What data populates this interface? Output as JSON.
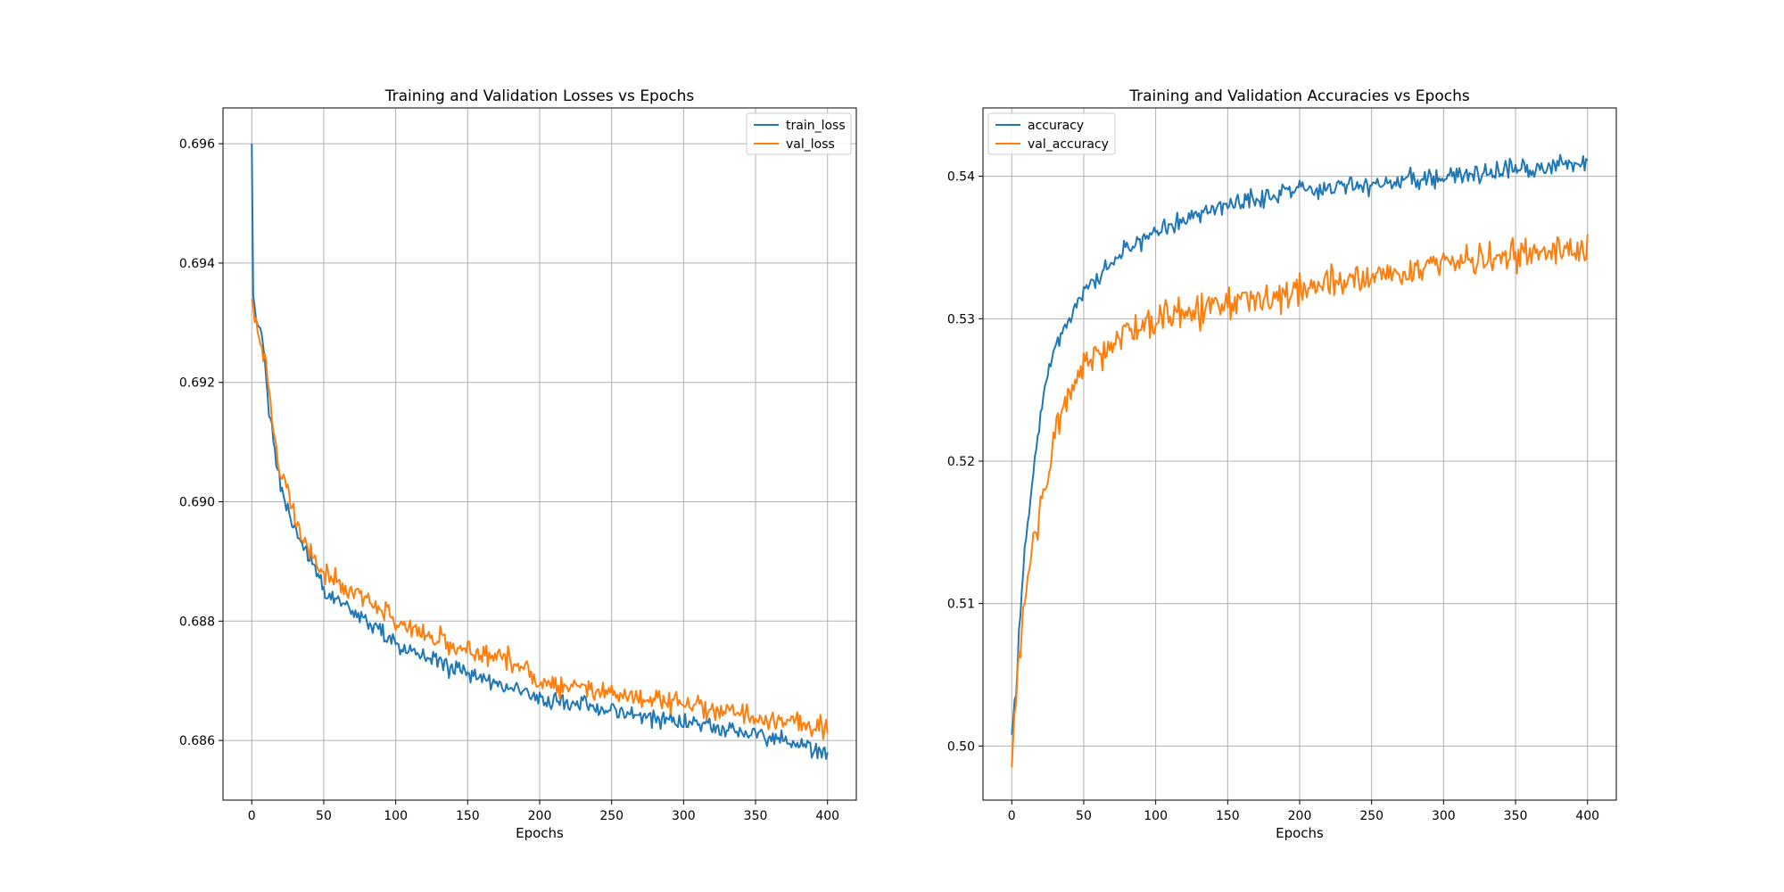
{
  "colors": {
    "train": "#1f77b4",
    "val": "#ff7f0e",
    "grid": "#b0b0b0",
    "axis": "#000000"
  },
  "chart_data": [
    {
      "type": "line",
      "title": "Training and Validation Losses vs Epochs",
      "xlabel": "Epochs",
      "ylabel": "",
      "xlim": [
        -20,
        420
      ],
      "ylim": [
        0.685,
        0.6966
      ],
      "xticks": [
        0,
        50,
        100,
        150,
        200,
        250,
        300,
        350,
        400
      ],
      "yticks": [
        0.686,
        0.688,
        0.69,
        0.692,
        0.694,
        0.696
      ],
      "ytick_decimals": 3,
      "grid": true,
      "legend_position": "top-right",
      "n_points": 401,
      "noise_seed": 11,
      "series": [
        {
          "name": "train_loss",
          "color": "#1f77b4",
          "noise": 0.00022,
          "control_points": [
            [
              0,
              0.696
            ],
            [
              1,
              0.6934
            ],
            [
              2,
              0.6931
            ],
            [
              5,
              0.6929
            ],
            [
              8,
              0.6927
            ],
            [
              12,
              0.6915
            ],
            [
              15,
              0.691
            ],
            [
              20,
              0.6903
            ],
            [
              25,
              0.6899
            ],
            [
              30,
              0.6895
            ],
            [
              40,
              0.6891
            ],
            [
              50,
              0.6885
            ],
            [
              60,
              0.6883
            ],
            [
              70,
              0.6882
            ],
            [
              80,
              0.688
            ],
            [
              100,
              0.6876
            ],
            [
              120,
              0.6874
            ],
            [
              150,
              0.6871
            ],
            [
              175,
              0.6869
            ],
            [
              200,
              0.6867
            ],
            [
              250,
              0.6865
            ],
            [
              300,
              0.6863
            ],
            [
              350,
              0.6861
            ],
            [
              375,
              0.686
            ],
            [
              400,
              0.6858
            ]
          ]
        },
        {
          "name": "val_loss",
          "color": "#ff7f0e",
          "noise": 0.00028,
          "control_points": [
            [
              0,
              0.6934
            ],
            [
              2,
              0.693
            ],
            [
              5,
              0.6928
            ],
            [
              8,
              0.6925
            ],
            [
              12,
              0.6918
            ],
            [
              15,
              0.6912
            ],
            [
              20,
              0.6905
            ],
            [
              25,
              0.6902
            ],
            [
              30,
              0.6897
            ],
            [
              40,
              0.6892
            ],
            [
              50,
              0.6888
            ],
            [
              60,
              0.6886
            ],
            [
              70,
              0.6885
            ],
            [
              80,
              0.6883
            ],
            [
              100,
              0.688
            ],
            [
              120,
              0.6878
            ],
            [
              150,
              0.6875
            ],
            [
              175,
              0.6874
            ],
            [
              200,
              0.687
            ],
            [
              250,
              0.6868
            ],
            [
              300,
              0.6866
            ],
            [
              350,
              0.6864
            ],
            [
              400,
              0.6862
            ]
          ]
        }
      ]
    },
    {
      "type": "line",
      "title": "Training and Validation Accuracies vs Epochs",
      "xlabel": "Epochs",
      "ylabel": "",
      "xlim": [
        -20,
        420
      ],
      "ylim": [
        0.4962,
        0.5448
      ],
      "xticks": [
        0,
        50,
        100,
        150,
        200,
        250,
        300,
        350,
        400
      ],
      "yticks": [
        0.5,
        0.51,
        0.52,
        0.53,
        0.54
      ],
      "ytick_decimals": 2,
      "grid": true,
      "legend_position": "top-left",
      "n_points": 401,
      "noise_seed": 29,
      "series": [
        {
          "name": "accuracy",
          "color": "#1f77b4",
          "noise": 0.001,
          "control_points": [
            [
              0,
              0.5008
            ],
            [
              3,
              0.504
            ],
            [
              5,
              0.508
            ],
            [
              8,
              0.512
            ],
            [
              10,
              0.515
            ],
            [
              15,
              0.519
            ],
            [
              20,
              0.523
            ],
            [
              25,
              0.526
            ],
            [
              30,
              0.528
            ],
            [
              40,
              0.53
            ],
            [
              50,
              0.532
            ],
            [
              60,
              0.533
            ],
            [
              70,
              0.534
            ],
            [
              80,
              0.535
            ],
            [
              100,
              0.536
            ],
            [
              120,
              0.537
            ],
            [
              150,
              0.538
            ],
            [
              175,
              0.5385
            ],
            [
              200,
              0.539
            ],
            [
              250,
              0.5395
            ],
            [
              300,
              0.54
            ],
            [
              350,
              0.5405
            ],
            [
              400,
              0.541
            ]
          ]
        },
        {
          "name": "val_accuracy",
          "color": "#ff7f0e",
          "noise": 0.0017,
          "control_points": [
            [
              0,
              0.4985
            ],
            [
              2,
              0.502
            ],
            [
              5,
              0.506
            ],
            [
              8,
              0.51
            ],
            [
              10,
              0.511
            ],
            [
              15,
              0.514
            ],
            [
              20,
              0.517
            ],
            [
              25,
              0.519
            ],
            [
              30,
              0.522
            ],
            [
              40,
              0.525
            ],
            [
              50,
              0.527
            ],
            [
              60,
              0.5275
            ],
            [
              70,
              0.528
            ],
            [
              80,
              0.529
            ],
            [
              100,
              0.53
            ],
            [
              120,
              0.5305
            ],
            [
              150,
              0.531
            ],
            [
              175,
              0.5315
            ],
            [
              200,
              0.532
            ],
            [
              250,
              0.533
            ],
            [
              300,
              0.534
            ],
            [
              350,
              0.5345
            ],
            [
              400,
              0.535
            ]
          ]
        }
      ]
    }
  ]
}
